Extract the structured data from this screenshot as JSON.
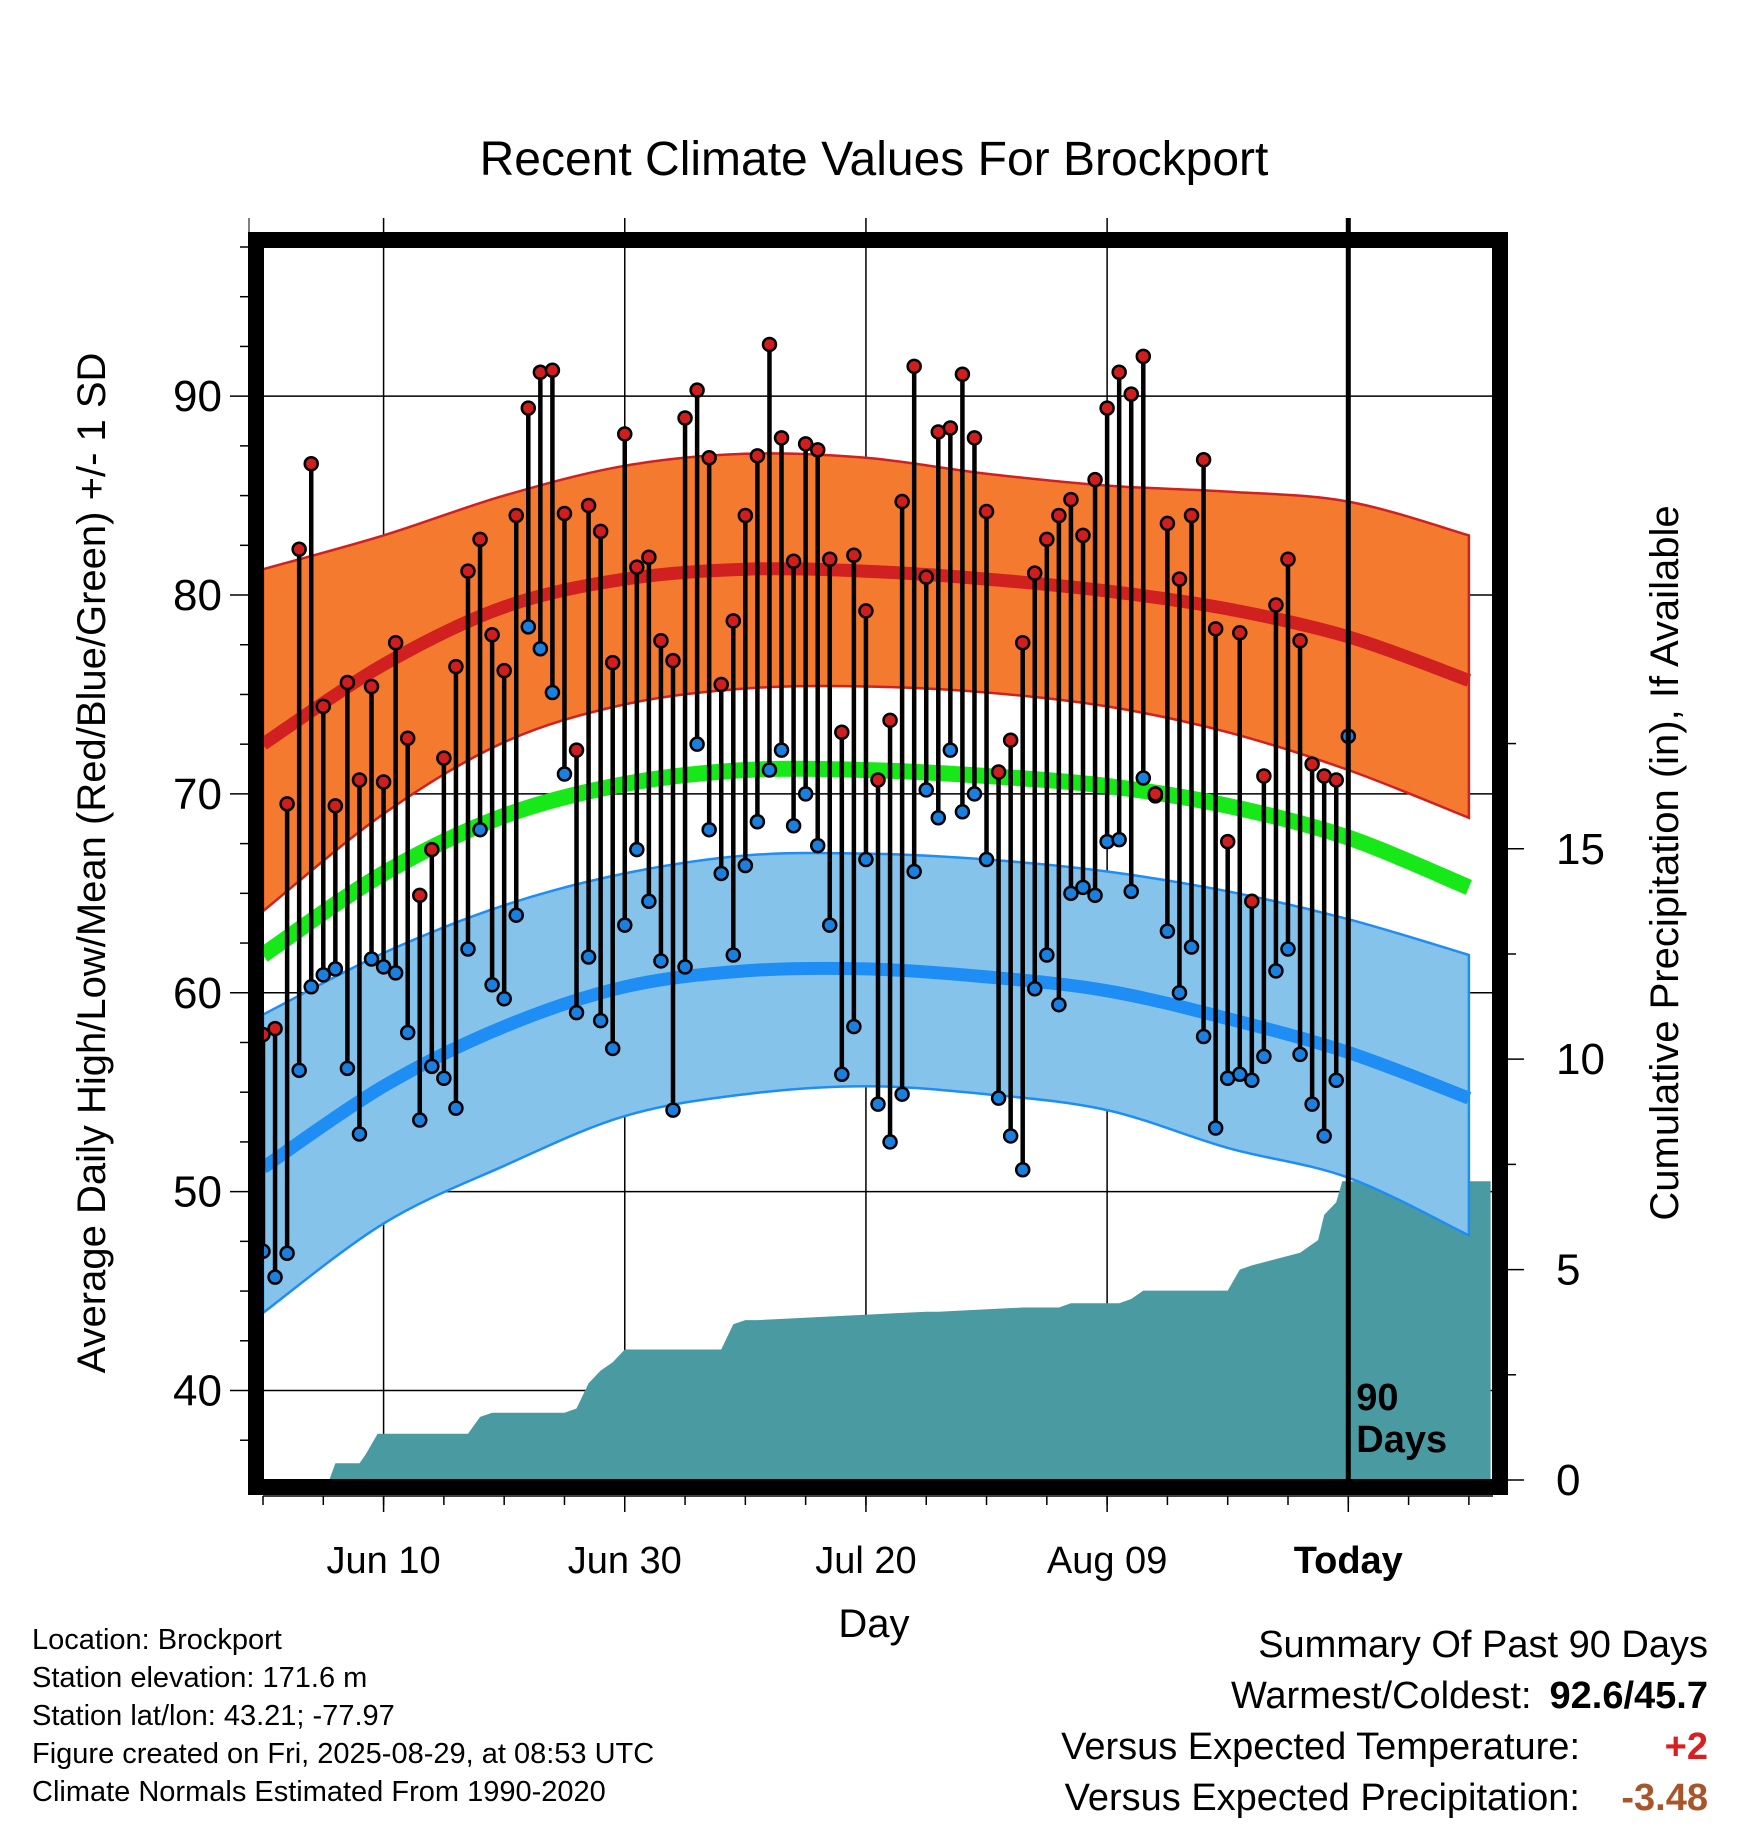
{
  "chart_data": {
    "type": "line",
    "title": "Recent Climate Values For Brockport",
    "xlabel": "Day",
    "ylabel": "Average Daily High/Low/Mean (Red/Blue/Green) +/- 1 SD",
    "y2label": "Cumulative Precipitation (in), If Available",
    "ylim": [
      35.5,
      97.5
    ],
    "y2lim": [
      0,
      29.3
    ],
    "yticks": [
      40,
      50,
      60,
      70,
      80,
      90
    ],
    "y2ticks": [
      0,
      5,
      10,
      15
    ],
    "xlim": [
      0,
      102
    ],
    "xticks": [
      {
        "day": 10,
        "label": "Jun 10"
      },
      {
        "day": 30,
        "label": "Jun 30"
      },
      {
        "day": 50,
        "label": "Jul 20"
      },
      {
        "day": 70,
        "label": "Aug 09"
      },
      {
        "day": 90,
        "label": "Today"
      }
    ],
    "today_marker": {
      "day": 90,
      "label_line1": "90",
      "label_line2": "Days"
    },
    "grid": true,
    "colors": {
      "high_band": "#f47a30",
      "high_line": "#d02020",
      "low_band": "#85c3ea",
      "low_line": "#1e8ef5",
      "mean_line": "#17e817",
      "precip": "#4a9aa2",
      "high_point": "#d01e1e",
      "low_point": "#1a80e0"
    },
    "normals": {
      "x": [
        0,
        10,
        20,
        30,
        40,
        50,
        60,
        70,
        80,
        90,
        100
      ],
      "high_upper": [
        81.3,
        83.0,
        85.0,
        86.5,
        87.1,
        86.9,
        86.1,
        85.5,
        85.2,
        84.7,
        83.0
      ],
      "high_mean": [
        72.5,
        76.5,
        79.4,
        80.8,
        81.3,
        81.2,
        80.8,
        80.2,
        79.3,
        77.9,
        75.7
      ],
      "high_lower": [
        64.1,
        69.0,
        72.6,
        74.5,
        75.3,
        75.4,
        75.1,
        74.4,
        73.1,
        71.2,
        68.8
      ],
      "mean_line": [
        61.9,
        66.0,
        68.9,
        70.5,
        71.2,
        71.2,
        70.9,
        70.4,
        69.4,
        67.8,
        65.3
      ],
      "low_upper": [
        58.9,
        62.0,
        64.4,
        66.0,
        66.9,
        67.0,
        66.7,
        66.1,
        65.1,
        63.7,
        61.9
      ],
      "low_mean": [
        51.2,
        55.3,
        58.3,
        60.3,
        61.1,
        61.2,
        60.8,
        60.1,
        58.7,
        57.0,
        54.7
      ],
      "low_lower": [
        43.9,
        48.4,
        51.3,
        53.8,
        54.9,
        55.3,
        54.9,
        54.1,
        52.2,
        50.7,
        47.8
      ]
    },
    "series": [
      {
        "name": "High",
        "days": [
          0,
          1,
          2,
          3,
          4,
          5,
          6,
          7,
          8,
          9,
          10,
          11,
          12,
          13,
          14,
          15,
          16,
          17,
          18,
          19,
          20,
          21,
          22,
          23,
          24,
          25,
          26,
          27,
          28,
          29,
          30,
          31,
          32,
          33,
          34,
          35,
          36,
          37,
          38,
          39,
          40,
          41,
          42,
          43,
          44,
          45,
          46,
          47,
          48,
          49,
          50,
          51,
          52,
          53,
          54,
          55,
          56,
          57,
          58,
          59,
          60,
          61,
          62,
          63,
          64,
          65,
          66,
          67,
          68,
          69,
          70,
          71,
          72,
          73,
          74,
          75,
          76,
          77,
          78,
          79,
          80,
          81,
          82,
          83,
          84,
          85,
          86,
          87,
          88,
          89
        ],
        "values": [
          57.9,
          58.2,
          69.5,
          82.3,
          86.6,
          74.4,
          69.4,
          75.6,
          70.7,
          75.4,
          70.6,
          77.6,
          72.8,
          64.9,
          67.2,
          71.8,
          76.4,
          81.2,
          82.8,
          78.0,
          76.2,
          84.0,
          89.4,
          91.2,
          91.3,
          84.1,
          72.2,
          84.5,
          83.2,
          76.6,
          88.1,
          81.4,
          81.9,
          77.7,
          76.7,
          88.9,
          90.3,
          86.9,
          75.5,
          78.7,
          84.0,
          87.0,
          92.6,
          87.9,
          81.7,
          87.6,
          87.3,
          81.8,
          73.1,
          82.0,
          79.2,
          70.7,
          73.7,
          84.7,
          91.5,
          80.9,
          88.2,
          88.4,
          91.1,
          87.9,
          84.2,
          71.1,
          72.7,
          77.6,
          81.1,
          82.8,
          84.0,
          84.8,
          83.0,
          85.8,
          89.4,
          91.2,
          90.1,
          92.0,
          70.0,
          83.6,
          80.8,
          84.0,
          86.8,
          78.3,
          67.6,
          78.1,
          64.6,
          70.9,
          79.5,
          81.8,
          77.7,
          71.5,
          70.9,
          70.7
        ]
      },
      {
        "name": "Low",
        "days": [
          0,
          1,
          2,
          3,
          4,
          5,
          6,
          7,
          8,
          9,
          10,
          11,
          12,
          13,
          14,
          15,
          16,
          17,
          18,
          19,
          20,
          21,
          22,
          23,
          24,
          25,
          26,
          27,
          28,
          29,
          30,
          31,
          32,
          33,
          34,
          35,
          36,
          37,
          38,
          39,
          40,
          41,
          42,
          43,
          44,
          45,
          46,
          47,
          48,
          49,
          50,
          51,
          52,
          53,
          54,
          55,
          56,
          57,
          58,
          59,
          60,
          61,
          62,
          63,
          64,
          65,
          66,
          67,
          68,
          69,
          70,
          71,
          72,
          73,
          74,
          75,
          76,
          77,
          78,
          79,
          80,
          81,
          82,
          83,
          84,
          85,
          86,
          87,
          88,
          89,
          90
        ],
        "values": [
          47.0,
          45.7,
          46.9,
          56.1,
          60.3,
          60.9,
          61.2,
          56.2,
          52.9,
          61.7,
          61.3,
          61.0,
          58.0,
          53.6,
          56.3,
          55.7,
          54.2,
          62.2,
          68.2,
          60.4,
          59.7,
          63.9,
          78.4,
          77.3,
          75.1,
          71.0,
          59.0,
          61.8,
          58.6,
          57.2,
          63.4,
          67.2,
          64.6,
          61.6,
          54.1,
          61.3,
          72.5,
          68.2,
          66.0,
          61.9,
          66.4,
          68.6,
          71.2,
          72.2,
          68.4,
          70.0,
          67.4,
          63.4,
          55.9,
          58.3,
          66.7,
          54.4,
          52.5,
          54.9,
          66.1,
          70.2,
          68.8,
          72.2,
          69.1,
          70.0,
          66.7,
          54.7,
          52.8,
          51.1,
          60.2,
          61.9,
          59.4,
          65.0,
          65.3,
          64.9,
          67.6,
          67.7,
          65.1,
          70.8,
          69.9,
          63.1,
          60.0,
          62.3,
          57.8,
          53.2,
          55.7,
          55.9,
          55.6,
          56.8,
          61.1,
          62.2,
          56.9,
          54.4,
          52.8,
          55.6,
          72.9
        ]
      }
    ],
    "precip_cumulative": {
      "days": [
        0,
        5.5,
        6.0,
        8.0,
        8.5,
        9.5,
        10.0,
        17.0,
        18.0,
        19.0,
        25.0,
        26.0,
        27.0,
        28.0,
        29.0,
        30.0,
        38.0,
        39.0,
        40.0,
        41.0,
        55.0,
        56.0,
        63.0,
        64.0,
        65.0,
        66.0,
        67.0,
        68.0,
        71.0,
        72.0,
        73.0,
        80.0,
        81.0,
        82.0,
        86.0,
        87.0,
        87.5,
        88.0,
        89.0,
        89.5,
        90.5,
        101.8
      ],
      "values": [
        0,
        0,
        0.4,
        0.4,
        0.6,
        1.1,
        1.1,
        1.1,
        1.5,
        1.6,
        1.6,
        1.7,
        2.3,
        2.6,
        2.8,
        3.1,
        3.1,
        3.7,
        3.8,
        3.8,
        4.0,
        4.0,
        4.1,
        4.1,
        4.1,
        4.1,
        4.2,
        4.2,
        4.2,
        4.3,
        4.5,
        4.5,
        5.0,
        5.1,
        5.4,
        5.6,
        5.7,
        6.3,
        6.6,
        7.1,
        7.1,
        7.1
      ]
    }
  },
  "footer": {
    "location": "Location: Brockport",
    "elevation": "Station elevation: 171.6 m",
    "latlon": "Station lat/lon: 43.21; -77.97",
    "created": "Figure created on Fri, 2025-08-29, at 08:53 UTC",
    "normals": "Climate Normals Estimated From 1990-2020"
  },
  "summary": {
    "title": "Summary Of Past 90 Days",
    "warmest_label": "Warmest/Coldest:",
    "warmest_value": "92.6/45.7",
    "temp_label": "Versus Expected Temperature:",
    "temp_value": "+2",
    "temp_color": "#d82020",
    "precip_label": "Versus Expected Precipitation:",
    "precip_value": "-3.48",
    "precip_color": "#a8552a"
  }
}
